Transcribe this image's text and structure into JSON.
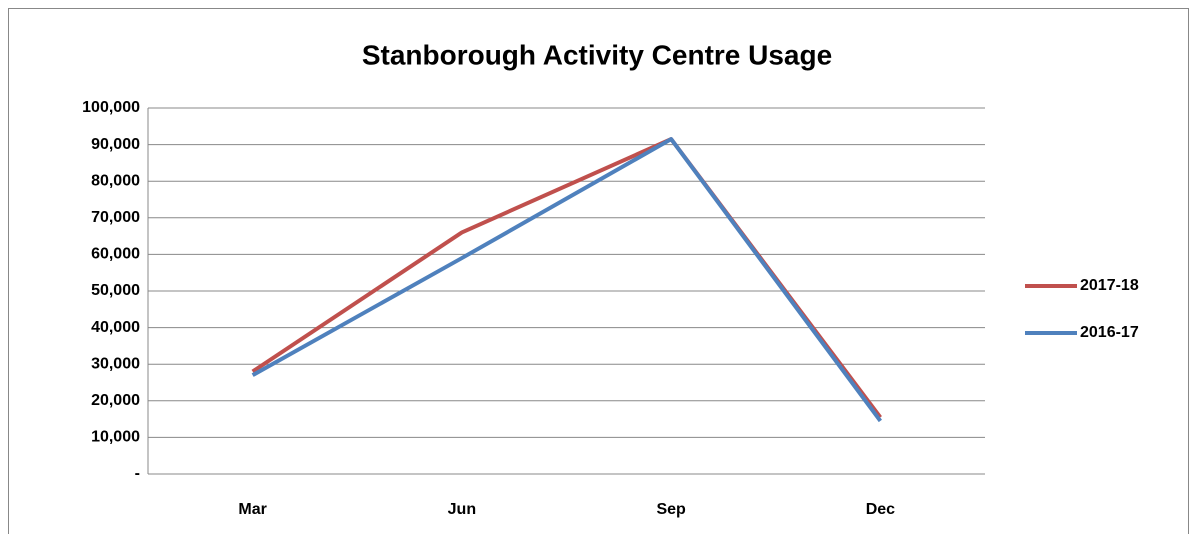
{
  "chart_data": {
    "type": "line",
    "title": "Stanborough Activity Centre Usage",
    "categories": [
      "Mar",
      "Jun",
      "Sep",
      "Dec"
    ],
    "series": [
      {
        "name": "2017-18",
        "color": "#c0504d",
        "values": [
          28000,
          66000,
          91500,
          15500
        ]
      },
      {
        "name": "2016-17",
        "color": "#4f81bd",
        "values": [
          27000,
          59000,
          91500,
          14500
        ]
      }
    ],
    "ylim": [
      0,
      100000
    ],
    "yticks": [
      {
        "value": 0,
        "label": "-"
      },
      {
        "value": 10000,
        "label": "10,000"
      },
      {
        "value": 20000,
        "label": "20,000"
      },
      {
        "value": 30000,
        "label": "30,000"
      },
      {
        "value": 40000,
        "label": "40,000"
      },
      {
        "value": 50000,
        "label": "50,000"
      },
      {
        "value": 60000,
        "label": "60,000"
      },
      {
        "value": 70000,
        "label": "70,000"
      },
      {
        "value": 80000,
        "label": "80,000"
      },
      {
        "value": 90000,
        "label": "90,000"
      },
      {
        "value": 100000,
        "label": "100,000"
      }
    ],
    "grid": true,
    "legend": "right"
  }
}
